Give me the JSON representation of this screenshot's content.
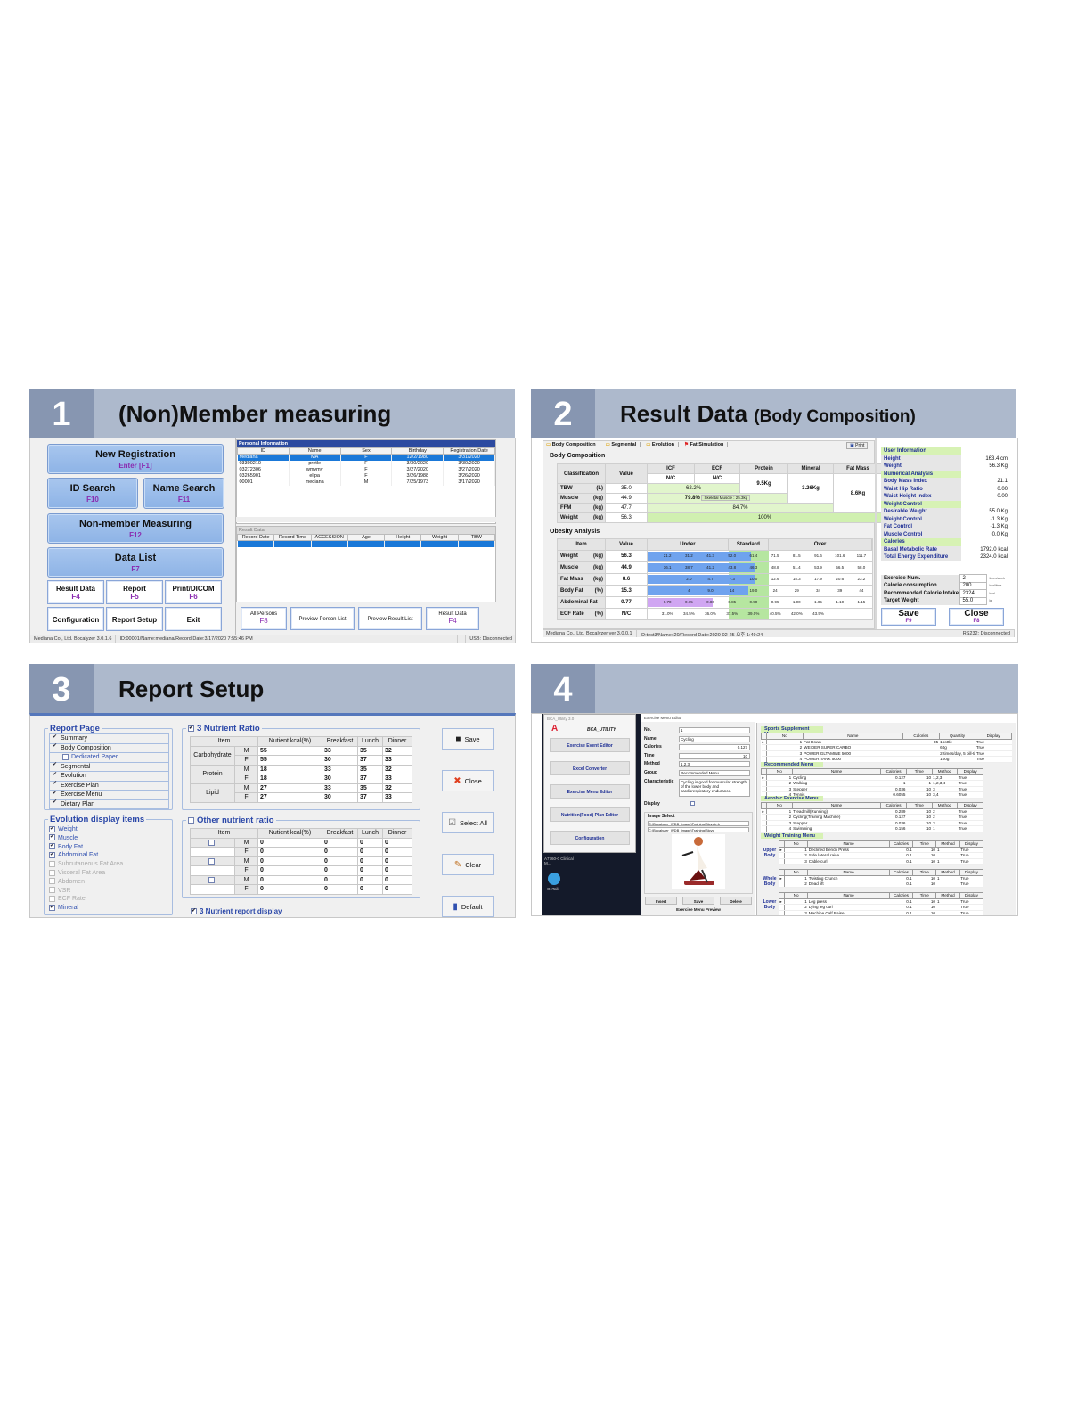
{
  "colors": {
    "header_bar": "#adb9cc",
    "number_box": "#8796b1",
    "button_blue": "#9dbdea",
    "accent_purple": "#8a2bb0",
    "selection": "#1a78d8",
    "green_cell": "#e1f5cc",
    "fill_blue": "#6fa3ee",
    "abdominal_fill": "#d0a6f2"
  },
  "panel1": {
    "number": "1",
    "title": "(Non)Member measuring",
    "big_buttons": [
      {
        "label": "New Registration",
        "key": "Enter [F1]"
      },
      {
        "label": "ID Search",
        "key": "F10"
      },
      {
        "label": "Name Search",
        "key": "F11"
      },
      {
        "label": "Non-member Measuring",
        "key": "F12"
      },
      {
        "label": "Data List",
        "key": "F7"
      }
    ],
    "small_buttons": [
      {
        "label": "Result Data",
        "key": "F4"
      },
      {
        "label": "Report",
        "key": "F5"
      },
      {
        "label": "Print/DICOM",
        "key": "F6"
      },
      {
        "label": "Configuration",
        "key": ""
      },
      {
        "label": "Report Setup",
        "key": ""
      },
      {
        "label": "Exit",
        "key": ""
      }
    ],
    "personal": {
      "title": "Personal Information",
      "columns": [
        "ID",
        "Name",
        "Sex",
        "Birthday",
        "Registration Date"
      ],
      "rows": [
        [
          "Mediana",
          "MA",
          "F",
          "12/2/1980",
          "3/31/2020"
        ],
        [
          "03300210",
          "pretle",
          "F",
          "3/30/2020",
          "3/30/2020"
        ],
        [
          "03272306",
          "wmymy",
          "F",
          "3/27/2020",
          "3/27/2020"
        ],
        [
          "03265901",
          "elipa",
          "F",
          "3/26/1988",
          "3/26/2020"
        ],
        [
          "00001",
          "mediana",
          "M",
          "7/25/1973",
          "3/17/2020"
        ]
      ]
    },
    "result": {
      "title": "Result Data",
      "columns": [
        "Record Date",
        "Record Time",
        "ACCESSION",
        "Age",
        "Height",
        "Weight",
        "TBW"
      ]
    },
    "bottom_buttons": [
      {
        "label": "All Persons",
        "key": "F8"
      },
      {
        "label": "Preview Person List",
        "key": ""
      },
      {
        "label": "Preview Result List",
        "key": ""
      },
      {
        "label": "Result Data",
        "key": "F4"
      }
    ],
    "status": [
      "Mediana Co., Ltd. Bocalyzer 3.0.1.6",
      "ID:00001/Name:mediana/Record Date:3/17/2020 7:55:46 PM",
      "",
      "USB: Disconnected"
    ]
  },
  "panel2": {
    "number": "2",
    "title": "Result Data",
    "subtitle": "(Body Composition)",
    "tabs": [
      "Body Composition",
      "Segmental",
      "Evolution",
      "Fat Simulation"
    ],
    "print": "Print",
    "body_comp": {
      "title": "Body Composition",
      "headers": [
        "Classification",
        "Value",
        "ICF",
        "ECF",
        "Protein",
        "Mineral",
        "Fat Mass"
      ],
      "icf": "N/C",
      "ecf": "N/C",
      "protein": "9.5Kg",
      "mineral": "3.26Kg",
      "fat_mass": "8.6Kg",
      "rows": [
        {
          "name": "TBW",
          "unit": "(L)",
          "value": "35.0",
          "pct": "62.2%"
        },
        {
          "name": "Muscle",
          "unit": "(kg)",
          "value": "44.9",
          "pct": "79.8%",
          "note": "Skeletal Muscle : 25.3kg"
        },
        {
          "name": "FFM",
          "unit": "(kg)",
          "value": "47.7",
          "pct": "84.7%"
        },
        {
          "name": "Weight",
          "unit": "(kg)",
          "value": "56.3",
          "pct": "100%"
        }
      ]
    },
    "obesity": {
      "title": "Obesity Analysis",
      "headers": [
        "Item",
        "Value",
        "Under",
        "Standard",
        "Over"
      ],
      "rows": [
        {
          "name": "Weight",
          "unit": "(kg)",
          "value": "56.3",
          "fill": 0.46,
          "scale": [
            "",
            "21.2",
            "31.2",
            "41.3",
            "52.0",
            "61.4",
            "71.5",
            "81.5",
            "91.6",
            "101.6",
            "111.7"
          ]
        },
        {
          "name": "Muscle",
          "unit": "(kg)",
          "value": "44.9",
          "fill": 0.48,
          "scale": [
            "",
            "36.1",
            "38.7",
            "41.2",
            "43.8",
            "46.3",
            "48.8",
            "51.4",
            "53.9",
            "56.5",
            "58.0"
          ]
        },
        {
          "name": "Fat Mass",
          "unit": "(kg)",
          "value": "8.6",
          "fill": 0.48,
          "scale": [
            "",
            "",
            "2.0",
            "4.7",
            "7.3",
            "10.0",
            "12.6",
            "15.3",
            "17.9",
            "20.6",
            "23.2"
          ]
        },
        {
          "name": "Body Fat",
          "unit": "(%)",
          "value": "15.3",
          "fill": 0.45,
          "scale": [
            "",
            "",
            "4",
            "9.0",
            "14",
            "19.0",
            "24",
            "29",
            "34",
            "39",
            "44"
          ]
        },
        {
          "name": "Abdominal Fat",
          "unit": "",
          "value": "0.77",
          "fill": 0.29,
          "scale": [
            "",
            "0.70",
            "0.75",
            "0.80",
            "0.85",
            "0.90",
            "0.95",
            "1.00",
            "1.05",
            "1.10",
            "1.15"
          ]
        },
        {
          "name": "ECF Rate",
          "unit": "(%)",
          "value": "N/C",
          "fill": 0,
          "scale": [
            "",
            "31.0%",
            "34.5%",
            "36.0%",
            "37.5%",
            "39.0%",
            "40.5%",
            "42.0%",
            "43.5%",
            "",
            ""
          ]
        }
      ]
    },
    "user_info": [
      {
        "section": "User Information"
      },
      {
        "k": "Height",
        "v": "163.4 cm"
      },
      {
        "k": "Weight",
        "v": "56.3  Kg"
      },
      {
        "section": "Numerical Analysis"
      },
      {
        "k": "Body Mass Index",
        "v": "21.1"
      },
      {
        "k": "Waist Hip Ratio",
        "v": "0.00"
      },
      {
        "k": "Waist Height Index",
        "v": "0.00"
      },
      {
        "section": "Weight Control"
      },
      {
        "k": "Desirable Weight",
        "v": "55.0 Kg"
      },
      {
        "k": "Weight Control",
        "v": "-1.3 Kg"
      },
      {
        "k": "Fat Control",
        "v": "-1.3 Kg"
      },
      {
        "k": "Muscle Control",
        "v": "0.0 Kg"
      },
      {
        "section": "Calories"
      },
      {
        "k": "Basal Metabolic Rate",
        "v": "1792.0 kcal"
      },
      {
        "k": "Total Energy Expenditure",
        "v": "2324.0 kcal"
      }
    ],
    "exercise": [
      {
        "k": "Exercise Num.",
        "v": "2",
        "u": "times/week"
      },
      {
        "k": "Calorie consumption",
        "v": "200",
        "u": "kcal/time"
      },
      {
        "k": "Recommended Calorie Intake",
        "v": "2324",
        "u": "kcal"
      },
      {
        "k": "Target Weight",
        "v": "55.0",
        "u": "kg"
      }
    ],
    "save": {
      "label": "Save",
      "key": "F9"
    },
    "close": {
      "label": "Close",
      "key": "F8"
    },
    "status": [
      "Mediana Co., Ltd. Bocalyzer ver 3.0.0.1",
      "ID:test3/Name:i20/Record Date:2020-02-25 오후 1:49:24",
      "RS232: Disconnected"
    ]
  },
  "panel3": {
    "number": "3",
    "title": "Report Setup",
    "report_page": {
      "title": "Report Page",
      "items": [
        {
          "label": "Summary",
          "checked": true
        },
        {
          "label": "Body Composition",
          "checked": true
        },
        {
          "label": "Dedicated Paper",
          "checked": false,
          "indent": true
        },
        {
          "label": "Segmental",
          "checked": true
        },
        {
          "label": "Evolution",
          "checked": true
        },
        {
          "label": "Exercise Plan",
          "checked": true
        },
        {
          "label": "Exercise Menu",
          "checked": true
        },
        {
          "label": "Dietary Plan",
          "checked": true
        }
      ]
    },
    "evolution": {
      "title": "Evolution display items",
      "items": [
        {
          "label": "Weight",
          "checked": true
        },
        {
          "label": "Muscle",
          "checked": true
        },
        {
          "label": "Body Fat",
          "checked": true
        },
        {
          "label": "Abdominal Fat",
          "checked": true
        },
        {
          "label": "Subcutaneous Fat Area",
          "checked": false
        },
        {
          "label": "Visceral Fat Area",
          "checked": false
        },
        {
          "label": "Abdomen",
          "checked": false
        },
        {
          "label": "VSR",
          "checked": false
        },
        {
          "label": "ECF Rate",
          "checked": false
        },
        {
          "label": "Mineral",
          "checked": true
        }
      ]
    },
    "nutrient": {
      "title": "3 Nutrient Ratio",
      "checked": true,
      "columns": [
        "Item",
        "Nutient kcal(%)",
        "Breakfast",
        "Lunch",
        "Dinner"
      ],
      "rows": [
        {
          "item": "Carbohydrate",
          "M": [
            "55",
            "33",
            "35",
            "32"
          ],
          "F": [
            "55",
            "30",
            "37",
            "33"
          ]
        },
        {
          "item": "Protein",
          "M": [
            "18",
            "33",
            "35",
            "32"
          ],
          "F": [
            "18",
            "30",
            "37",
            "33"
          ]
        },
        {
          "item": "Lipid",
          "M": [
            "27",
            "33",
            "35",
            "32"
          ],
          "F": [
            "27",
            "30",
            "37",
            "33"
          ]
        }
      ]
    },
    "other": {
      "title": "Other nutrient ratio",
      "checked": false,
      "columns": [
        "Item",
        "Nutient kcal(%)",
        "Breakfast",
        "Lunch",
        "Dinner"
      ],
      "rows": [
        {
          "M": [
            "0",
            "0",
            "0",
            "0"
          ],
          "F": [
            "0",
            "0",
            "0",
            "0"
          ]
        },
        {
          "M": [
            "0",
            "0",
            "0",
            "0"
          ],
          "F": [
            "0",
            "0",
            "0",
            "0"
          ]
        },
        {
          "M": [
            "0",
            "0",
            "0",
            "0"
          ],
          "F": [
            "0",
            "0",
            "0",
            "0"
          ]
        }
      ]
    },
    "sex_labels": [
      "M",
      "F"
    ],
    "report_display": {
      "label": "3 Nutrient report display",
      "checked": true
    },
    "buttons": [
      {
        "label": "Save",
        "icon": "floppy"
      },
      {
        "label": "Close",
        "icon": "x"
      },
      {
        "label": "Select All",
        "icon": "checklist"
      },
      {
        "label": "Clear",
        "icon": "eraser"
      },
      {
        "label": "Default",
        "icon": "chart"
      }
    ]
  },
  "panel4": {
    "number": "4",
    "utility": {
      "title": "BCA_Utility 3.0",
      "logo": "BCA_UTILITY",
      "buttons": [
        "Exercise Event Editor",
        "Excel Converter",
        "Exercise Menu Editor",
        "Nutrition(Food) Plan Editor",
        "Configuration"
      ]
    },
    "desktop_icons": [
      "A7760-0 Clinical M...",
      "OcTalk"
    ],
    "editor": {
      "title": "Exercise Menu Editor",
      "fields": [
        {
          "k": "No.",
          "v": "1"
        },
        {
          "k": "Name",
          "v": "Cycling"
        },
        {
          "k": "Calories",
          "v": "0.127"
        },
        {
          "k": "Time",
          "v": "10"
        },
        {
          "k": "Method",
          "v": "1,2,3"
        },
        {
          "k": "Group",
          "v": "Recommended Menu"
        }
      ],
      "characteristic_label": "Characteristic",
      "characteristic": "Cycling is good for muscular strength of the lower body and cardiorespiratory endurance.",
      "display_label": "Display",
      "image_select": "Image Select",
      "paths": [
        "C:\\Bocalyzer_WDB_Image\\Training\\Bicycle.b",
        "C:\\Bocalyzer_WDB_Image\\Training\\Bicyc"
      ],
      "buttons": [
        "Insert",
        "Save",
        "Delete"
      ],
      "preview": "Exercise Menu Preview"
    },
    "sports": {
      "title": "Sports Supplement Menu",
      "columns": [
        "No",
        "Name",
        "Calories",
        "Quantity",
        "Display"
      ],
      "rows": [
        [
          "1",
          "Fat Down",
          "35",
          "1bottle",
          "True"
        ],
        [
          "2",
          "WEIDER SUPER CARBO",
          "",
          "60g",
          "True"
        ],
        [
          "3",
          "POWER GLTAMINE 5000",
          "",
          "2-times/day, 5 pill-time",
          "True"
        ],
        [
          "4",
          "POWER TANK 5000",
          "",
          "100g",
          "True"
        ]
      ]
    },
    "recommended": {
      "title": "Recommended Menu",
      "columns": [
        "No",
        "Name",
        "Calories",
        "Time",
        "Method",
        "Display"
      ],
      "rows": [
        [
          "1",
          "Cycling",
          "0.127",
          "10",
          "1,2,3",
          "True"
        ],
        [
          "2",
          "Walking",
          "1",
          "1",
          "1,2,3,4",
          "True"
        ],
        [
          "3",
          "Stepper",
          "0.036",
          "10",
          "3",
          "True"
        ],
        [
          "4",
          "Tennis",
          "0.6055",
          "10",
          "3,4",
          "True"
        ]
      ]
    },
    "aerobic": {
      "title": "Aerobic Exercise Menu",
      "columns": [
        "No",
        "Name",
        "Calories",
        "Time",
        "Method",
        "Display"
      ],
      "rows": [
        [
          "1",
          "Treadmill(Running)",
          "0.289",
          "10",
          "2",
          "True"
        ],
        [
          "2",
          "Cycling(Training Machine)",
          "0.127",
          "10",
          "2",
          "True"
        ],
        [
          "3",
          "Stepper",
          "0.036",
          "10",
          "3",
          "True"
        ],
        [
          "4",
          "Swimming",
          "0.156",
          "10",
          "1",
          "True"
        ]
      ]
    },
    "weight": {
      "title": "Weight Training Menu",
      "columns": [
        "No",
        "Name",
        "Calories",
        "Time",
        "Method",
        "Display"
      ],
      "groups": [
        {
          "label": "Upper Body",
          "rows": [
            [
              "1",
              "Declined Bench Press",
              "0.1",
              "10",
              "1",
              "True"
            ],
            [
              "2",
              "Side lateral raise",
              "0.1",
              "10",
              "",
              "True"
            ],
            [
              "3",
              "Cable curl",
              "0.1",
              "10",
              "1",
              "True"
            ]
          ]
        },
        {
          "label": "Whole Body",
          "rows": [
            [
              "1",
              "Twisting Crunch",
              "0.1",
              "10",
              "1",
              "True"
            ],
            [
              "2",
              "Dead lift",
              "0.1",
              "10",
              "",
              "True"
            ]
          ]
        },
        {
          "label": "Lower Body",
          "rows": [
            [
              "1",
              "Leg press",
              "0.1",
              "10",
              "1",
              "True"
            ],
            [
              "2",
              "Lying leg curl",
              "0.1",
              "10",
              "",
              "True"
            ],
            [
              "3",
              "Machine Calf Raise",
              "0.1",
              "10",
              "",
              "True"
            ]
          ]
        }
      ]
    }
  }
}
